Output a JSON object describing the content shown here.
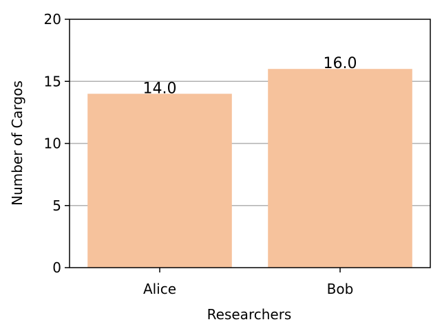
{
  "chart_data": {
    "type": "bar",
    "title": "",
    "xlabel": "Researchers",
    "ylabel": "Number of Cargos",
    "categories": [
      "Alice",
      "Bob"
    ],
    "values": [
      14.0,
      16.0
    ],
    "value_labels": [
      "14.0",
      "16.0"
    ],
    "ylim": [
      0,
      20
    ],
    "yticks": [
      0,
      5,
      10,
      15,
      20
    ],
    "ytick_labels": [
      "0",
      "5",
      "10",
      "15",
      "20"
    ],
    "grid": "y",
    "legend": "none",
    "colors": {
      "bar": "#f6c29c",
      "grid": "#b0b0b0",
      "axis": "#000000"
    }
  }
}
